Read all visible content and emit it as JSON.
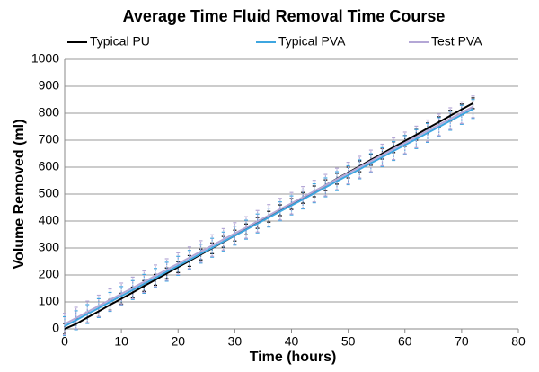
{
  "chart_data": {
    "type": "line",
    "title": "Average Time Fluid Removal Time Course",
    "xlabel": "Time (hours)",
    "ylabel": "Volume Removed (ml)",
    "x": [
      0,
      2,
      4,
      6,
      8,
      10,
      12,
      14,
      16,
      18,
      20,
      22,
      24,
      26,
      28,
      30,
      32,
      34,
      36,
      38,
      40,
      42,
      44,
      46,
      48,
      50,
      52,
      54,
      56,
      58,
      60,
      62,
      64,
      66,
      68,
      70,
      72
    ],
    "series": [
      {
        "name": "Typical PU",
        "color": "#000000",
        "values": [
          0,
          18,
          42,
          65,
          89,
          112,
          135,
          159,
          182,
          206,
          229,
          252,
          276,
          299,
          323,
          346,
          369,
          393,
          416,
          440,
          463,
          486,
          510,
          533,
          557,
          580,
          603,
          627,
          650,
          674,
          697,
          720,
          744,
          767,
          791,
          814,
          837
        ],
        "errors": [
          20,
          20,
          20,
          20,
          20,
          20,
          20,
          20,
          20,
          20,
          20,
          20,
          20,
          20,
          20,
          20,
          20,
          20,
          20,
          20,
          20,
          20,
          20,
          20,
          20,
          20,
          20,
          20,
          20,
          20,
          20,
          20,
          20,
          20,
          20,
          20,
          20
        ]
      },
      {
        "name": "Typical PVA",
        "color": "#3ea6e0",
        "values": [
          10,
          32,
          55,
          77,
          100,
          122,
          144,
          167,
          189,
          212,
          234,
          256,
          279,
          301,
          324,
          346,
          368,
          391,
          413,
          436,
          458,
          480,
          503,
          525,
          548,
          570,
          592,
          615,
          637,
          660,
          682,
          704,
          727,
          749,
          772,
          794,
          816
        ],
        "errors": [
          35,
          35,
          35,
          35,
          35,
          35,
          35,
          35,
          35,
          35,
          35,
          35,
          35,
          35,
          35,
          35,
          35,
          35,
          35,
          35,
          35,
          35,
          35,
          35,
          35,
          35,
          35,
          35,
          35,
          35,
          35,
          35,
          35,
          35,
          35,
          35,
          35
        ]
      },
      {
        "name": "Test PVA",
        "color": "#b4a7d6",
        "values": [
          18,
          40,
          63,
          85,
          108,
          130,
          152,
          175,
          197,
          220,
          242,
          264,
          287,
          309,
          332,
          354,
          376,
          399,
          421,
          444,
          466,
          488,
          511,
          533,
          556,
          578,
          600,
          623,
          645,
          668,
          690,
          712,
          735,
          757,
          780,
          802,
          824
        ],
        "errors": [
          40,
          40,
          40,
          40,
          40,
          40,
          40,
          40,
          40,
          40,
          40,
          40,
          40,
          40,
          40,
          40,
          40,
          40,
          40,
          40,
          40,
          40,
          40,
          40,
          40,
          40,
          40,
          40,
          40,
          40,
          40,
          40,
          40,
          40,
          40,
          40,
          40
        ]
      }
    ],
    "xlim": [
      0,
      80
    ],
    "xticks": [
      0,
      10,
      20,
      30,
      40,
      50,
      60,
      70,
      80
    ],
    "ylim": [
      0,
      1000
    ],
    "yticks": [
      0,
      100,
      200,
      300,
      400,
      500,
      600,
      700,
      800,
      900,
      1000
    ],
    "grid": true,
    "legend": "top"
  }
}
